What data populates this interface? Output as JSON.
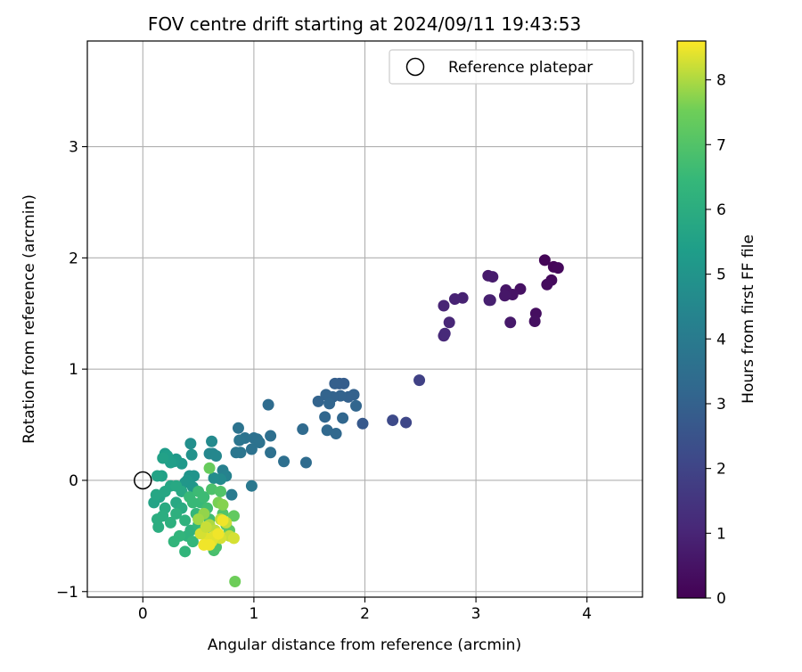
{
  "chart_data": {
    "type": "scatter",
    "title": "FOV centre drift starting at 2024/09/11 19:43:53",
    "xlabel": "Angular distance from reference (arcmin)",
    "ylabel": "Rotation from reference (arcmin)",
    "xlim": [
      -0.5,
      4.5
    ],
    "ylim": [
      -1.05,
      3.95
    ],
    "xticks": [
      "0",
      "1",
      "2",
      "3",
      "4"
    ],
    "yticks": [
      "−1",
      "0",
      "1",
      "2",
      "3"
    ],
    "grid": true,
    "legend": {
      "position": "top-right",
      "entries": [
        "Reference platepar"
      ]
    },
    "reference_point": {
      "x": 0,
      "y": 0
    },
    "colorbar": {
      "label": "Hours from first FF file",
      "range": [
        0,
        8.6
      ],
      "ticks": [
        "0",
        "1",
        "2",
        "3",
        "4",
        "5",
        "6",
        "7",
        "8"
      ],
      "colormap": "viridis"
    },
    "series": [
      {
        "values": [
          [
            3.62,
            1.98,
            0.1
          ],
          [
            3.7,
            1.92,
            0.15
          ],
          [
            3.74,
            1.91,
            0.2
          ],
          [
            3.68,
            1.8,
            0.25
          ],
          [
            3.64,
            1.76,
            0.3
          ],
          [
            3.54,
            1.5,
            0.35
          ],
          [
            3.53,
            1.43,
            0.4
          ],
          [
            3.4,
            1.72,
            0.45
          ],
          [
            3.33,
            1.67,
            0.5
          ],
          [
            3.27,
            1.71,
            0.55
          ],
          [
            3.26,
            1.66,
            0.6
          ],
          [
            3.31,
            1.42,
            0.65
          ],
          [
            3.11,
            1.84,
            0.7
          ],
          [
            3.15,
            1.83,
            0.75
          ],
          [
            3.12,
            1.62,
            0.8
          ],
          [
            3.13,
            1.62,
            0.85
          ],
          [
            2.88,
            1.64,
            0.9
          ],
          [
            2.81,
            1.63,
            0.95
          ],
          [
            2.71,
            1.57,
            1.0
          ],
          [
            2.76,
            1.42,
            1.05
          ],
          [
            2.71,
            1.3,
            1.1
          ],
          [
            2.72,
            1.32,
            1.15
          ],
          [
            2.49,
            0.9,
            1.9
          ],
          [
            2.37,
            0.52,
            2.1
          ],
          [
            2.25,
            0.54,
            2.2
          ],
          [
            1.98,
            0.51,
            2.7
          ],
          [
            1.77,
            0.87,
            2.8
          ],
          [
            1.81,
            0.87,
            2.85
          ],
          [
            1.73,
            0.87,
            2.9
          ],
          [
            1.9,
            0.77,
            3.0
          ],
          [
            1.85,
            0.75,
            3.0
          ],
          [
            1.78,
            0.76,
            3.05
          ],
          [
            1.71,
            0.75,
            3.05
          ],
          [
            1.65,
            0.77,
            3.1
          ],
          [
            1.58,
            0.71,
            3.1
          ],
          [
            1.92,
            0.67,
            3.15
          ],
          [
            1.68,
            0.69,
            3.15
          ],
          [
            1.8,
            0.56,
            3.2
          ],
          [
            1.64,
            0.57,
            3.2
          ],
          [
            1.66,
            0.45,
            3.25
          ],
          [
            1.74,
            0.42,
            3.25
          ],
          [
            1.44,
            0.46,
            3.35
          ],
          [
            1.47,
            0.16,
            3.4
          ],
          [
            1.27,
            0.17,
            3.5
          ],
          [
            1.13,
            0.68,
            3.4
          ],
          [
            1.15,
            0.4,
            3.5
          ],
          [
            1.15,
            0.25,
            3.55
          ],
          [
            1.03,
            0.37,
            3.6
          ],
          [
            1.0,
            0.38,
            3.6
          ],
          [
            1.05,
            0.34,
            3.65
          ],
          [
            0.98,
            0.28,
            3.65
          ],
          [
            0.92,
            0.38,
            3.7
          ],
          [
            0.86,
            0.47,
            3.7
          ],
          [
            0.87,
            0.36,
            3.75
          ],
          [
            0.88,
            0.25,
            3.75
          ],
          [
            0.84,
            0.25,
            3.8
          ],
          [
            0.98,
            -0.05,
            3.9
          ],
          [
            0.8,
            -0.13,
            4.0
          ],
          [
            0.72,
            0.09,
            4.2
          ],
          [
            0.75,
            0.04,
            4.3
          ],
          [
            0.63,
            0.24,
            4.4
          ],
          [
            0.6,
            0.24,
            4.5
          ],
          [
            0.66,
            0.22,
            4.5
          ],
          [
            0.62,
            0.35,
            4.6
          ],
          [
            0.7,
            0.01,
            4.6
          ],
          [
            0.64,
            0.02,
            4.7
          ],
          [
            0.43,
            0.33,
            4.8
          ],
          [
            0.44,
            0.23,
            4.9
          ],
          [
            0.42,
            0.04,
            5.0
          ],
          [
            0.46,
            0.04,
            5.0
          ],
          [
            0.4,
            0.0,
            5.1
          ],
          [
            0.38,
            -0.02,
            5.1
          ],
          [
            0.45,
            -0.06,
            5.1
          ],
          [
            0.35,
            0.15,
            5.2
          ],
          [
            0.3,
            0.19,
            5.2
          ],
          [
            0.28,
            0.17,
            5.3
          ],
          [
            0.2,
            0.24,
            5.3
          ],
          [
            0.22,
            0.22,
            5.4
          ],
          [
            0.25,
            0.16,
            5.4
          ],
          [
            0.18,
            0.2,
            5.5
          ],
          [
            0.17,
            0.04,
            5.5
          ],
          [
            0.13,
            0.04,
            5.6
          ],
          [
            0.1,
            -0.2,
            5.6
          ],
          [
            0.15,
            -0.15,
            5.6
          ],
          [
            0.12,
            -0.13,
            5.7
          ],
          [
            0.2,
            -0.1,
            5.7
          ],
          [
            0.25,
            -0.05,
            5.7
          ],
          [
            0.3,
            -0.05,
            5.8
          ],
          [
            0.35,
            -0.1,
            5.8
          ],
          [
            0.3,
            -0.2,
            5.8
          ],
          [
            0.35,
            -0.25,
            5.9
          ],
          [
            0.2,
            -0.25,
            5.9
          ],
          [
            0.18,
            -0.32,
            6.0
          ],
          [
            0.13,
            -0.35,
            6.0
          ],
          [
            0.14,
            -0.42,
            6.0
          ],
          [
            0.25,
            -0.38,
            6.1
          ],
          [
            0.3,
            -0.3,
            6.1
          ],
          [
            0.38,
            -0.36,
            6.2
          ],
          [
            0.43,
            -0.45,
            6.2
          ],
          [
            0.4,
            -0.5,
            6.2
          ],
          [
            0.33,
            -0.5,
            6.3
          ],
          [
            0.28,
            -0.55,
            6.3
          ],
          [
            0.38,
            -0.64,
            6.3
          ],
          [
            0.45,
            -0.55,
            6.4
          ],
          [
            0.5,
            -0.4,
            6.4
          ],
          [
            0.48,
            -0.3,
            6.4
          ],
          [
            0.52,
            -0.2,
            6.5
          ],
          [
            0.45,
            -0.2,
            6.5
          ],
          [
            0.42,
            -0.15,
            6.5
          ],
          [
            0.5,
            -0.1,
            6.6
          ],
          [
            0.55,
            -0.15,
            6.6
          ],
          [
            0.58,
            -0.25,
            6.7
          ],
          [
            0.6,
            -0.35,
            6.7
          ],
          [
            0.55,
            -0.45,
            6.7
          ],
          [
            0.63,
            -0.55,
            6.8
          ],
          [
            0.64,
            -0.63,
            6.8
          ],
          [
            0.66,
            -0.6,
            6.9
          ],
          [
            0.62,
            -0.08,
            6.9
          ],
          [
            0.7,
            -0.1,
            7.0
          ],
          [
            0.72,
            -0.3,
            7.0
          ],
          [
            0.75,
            -0.4,
            7.1
          ],
          [
            0.78,
            -0.45,
            7.2
          ],
          [
            0.82,
            -0.32,
            7.3
          ],
          [
            0.6,
            0.11,
            7.4
          ],
          [
            0.83,
            -0.91,
            7.5
          ],
          [
            0.68,
            -0.2,
            7.6
          ],
          [
            0.72,
            -0.22,
            7.7
          ],
          [
            0.55,
            -0.3,
            7.8
          ],
          [
            0.5,
            -0.35,
            7.9
          ],
          [
            0.6,
            -0.4,
            8.0
          ],
          [
            0.65,
            -0.45,
            8.1
          ],
          [
            0.7,
            -0.35,
            8.1
          ],
          [
            0.75,
            -0.38,
            8.2
          ],
          [
            0.78,
            -0.5,
            8.2
          ],
          [
            0.82,
            -0.52,
            8.3
          ],
          [
            0.7,
            -0.52,
            8.3
          ],
          [
            0.65,
            -0.5,
            8.4
          ],
          [
            0.62,
            -0.55,
            8.4
          ],
          [
            0.58,
            -0.52,
            8.4
          ],
          [
            0.55,
            -0.58,
            8.5
          ],
          [
            0.6,
            -0.58,
            8.5
          ],
          [
            0.68,
            -0.48,
            8.5
          ],
          [
            0.72,
            -0.36,
            8.5
          ],
          [
            0.52,
            -0.48,
            8.3
          ],
          [
            0.57,
            -0.42,
            8.2
          ]
        ]
      }
    ]
  }
}
